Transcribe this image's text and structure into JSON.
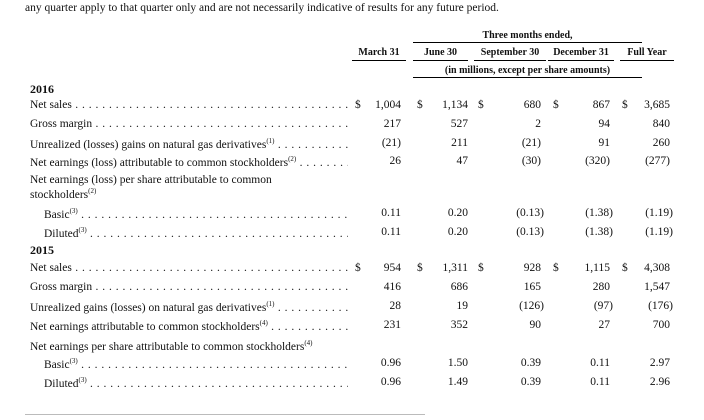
{
  "intro": "any quarter apply to that quarter only and are not necessarily indicative of results for any future period.",
  "header": {
    "group_label": "Three months ended,",
    "columns": [
      "March 31",
      "June 30",
      "September 30",
      "December 31",
      "Full Year"
    ],
    "units": "(in millions, except per share amounts)"
  },
  "y2016": {
    "year": "2016",
    "net_sales": {
      "label": "Net sales",
      "values": [
        "1,004",
        "1,134",
        "680",
        "867",
        "3,685"
      ]
    },
    "gross_margin": {
      "label": "Gross margin",
      "values": [
        "217",
        "527",
        "2",
        "94",
        "840"
      ]
    },
    "unrealized": {
      "label": "Unrealized (losses) gains on natural gas derivatives",
      "note": "(1)",
      "values": [
        "(21)",
        "211",
        "(21)",
        "91",
        "260"
      ]
    },
    "net_earnings": {
      "label": "Net earnings (loss) attributable to common stockholders",
      "note": "(2)",
      "values": [
        "26",
        "47",
        "(30)",
        "(320)",
        "(277)"
      ]
    },
    "eps_label": "Net earnings (loss) per share attributable to common stockholders",
    "eps_note": "(2)",
    "basic": {
      "label": "Basic",
      "note": "(3)",
      "values": [
        "0.11",
        "0.20",
        "(0.13)",
        "(1.38)",
        "(1.19)"
      ]
    },
    "diluted": {
      "label": "Diluted",
      "note": "(3)",
      "values": [
        "0.11",
        "0.20",
        "(0.13)",
        "(1.38)",
        "(1.19)"
      ]
    }
  },
  "y2015": {
    "year": "2015",
    "net_sales": {
      "label": "Net sales",
      "values": [
        "954",
        "1,311",
        "928",
        "1,115",
        "4,308"
      ]
    },
    "gross_margin": {
      "label": "Gross margin",
      "values": [
        "416",
        "686",
        "165",
        "280",
        "1,547"
      ]
    },
    "unrealized": {
      "label": "Unrealized gains (losses) on natural gas derivatives",
      "note": "(1)",
      "values": [
        "28",
        "19",
        "(126)",
        "(97)",
        "(176)"
      ]
    },
    "net_earnings": {
      "label": "Net earnings attributable to common stockholders",
      "note": "(4)",
      "values": [
        "231",
        "352",
        "90",
        "27",
        "700"
      ]
    },
    "eps_label": "Net earnings per share attributable to common stockholders",
    "eps_note": "(4)",
    "basic": {
      "label": "Basic",
      "note": "(3)",
      "values": [
        "0.96",
        "1.50",
        "0.39",
        "0.11",
        "2.97"
      ]
    },
    "diluted": {
      "label": "Diluted",
      "note": "(3)",
      "values": [
        "0.96",
        "1.49",
        "0.39",
        "0.11",
        "2.96"
      ]
    }
  },
  "currency_symbol": "$"
}
